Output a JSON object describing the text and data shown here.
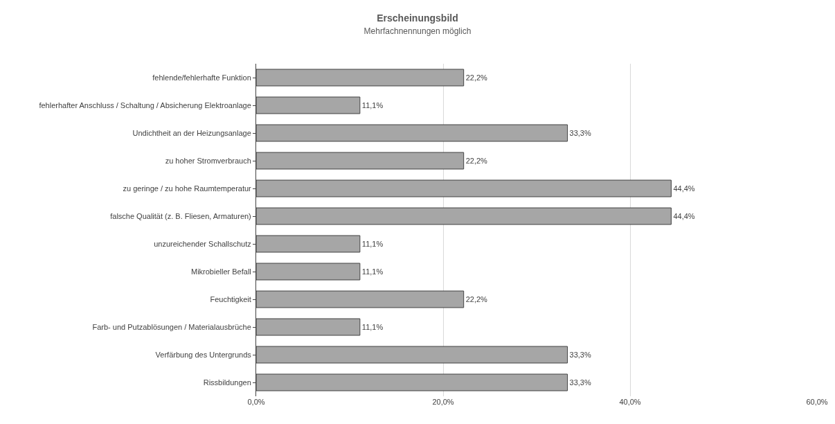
{
  "chart_data": {
    "type": "bar",
    "orientation": "horizontal",
    "title": "Erscheinungsbild",
    "subtitle": "Mehrfachnennungen möglich",
    "categories": [
      "fehlende/fehlerhafte Funktion",
      "fehlerhafter Anschluss / Schaltung / Absicherung Elektroanlage",
      "Undichtheit an der Heizungsanlage",
      "zu hoher Stromverbrauch",
      "zu geringe / zu hohe Raumtemperatur",
      "falsche Qualität (z. B. Fliesen, Armaturen)",
      "unzureichender Schallschutz",
      "Mikrobieller Befall",
      "Feuchtigkeit",
      "Farb- und Putzablösungen / Materialausbrüche",
      "Verfärbung des Untergrunds",
      "Rissbildungen"
    ],
    "values": [
      22.2,
      11.1,
      33.3,
      22.2,
      44.4,
      44.4,
      11.1,
      11.1,
      22.2,
      11.1,
      33.3,
      33.3
    ],
    "value_labels": [
      "22,2%",
      "11,1%",
      "33,3%",
      "22,2%",
      "44,4%",
      "44,4%",
      "11,1%",
      "11,1%",
      "22,2%",
      "11,1%",
      "33,3%",
      "33,3%"
    ],
    "color": "#a6a6a6",
    "xlim": [
      0,
      60
    ],
    "xticks": [
      {
        "value": 0,
        "label": "0,0%"
      },
      {
        "value": 20,
        "label": "20,0%"
      },
      {
        "value": 40,
        "label": "40,0%"
      },
      {
        "value": 60,
        "label": "60,0%"
      }
    ],
    "grid": "x"
  }
}
